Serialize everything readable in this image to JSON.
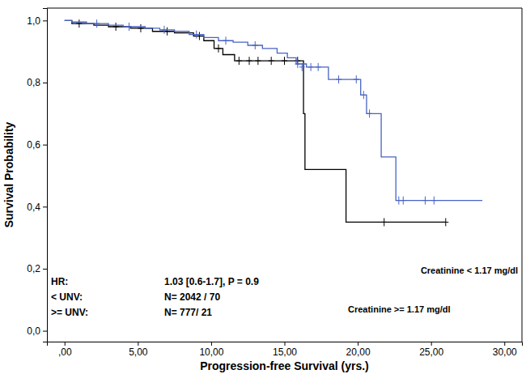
{
  "chart_data": {
    "type": "step",
    "x_label": "Progression-free Survival (yrs.)",
    "y_label": "Survival Probability",
    "xlim": [
      -1.2,
      31.2
    ],
    "ylim": [
      -0.035,
      1.04
    ],
    "xticks": [
      {
        "value": 0,
        "label": ",00"
      },
      {
        "value": 5,
        "label": "5,00"
      },
      {
        "value": 10,
        "label": "10,00"
      },
      {
        "value": 15,
        "label": "15,00"
      },
      {
        "value": 20,
        "label": "20,00"
      },
      {
        "value": 25,
        "label": "25,00"
      },
      {
        "value": 30,
        "label": "30,00"
      }
    ],
    "yticks": [
      {
        "value": 0,
        "label": "0,0"
      },
      {
        "value": 0.2,
        "label": "0,2"
      },
      {
        "value": 0.4,
        "label": "0,4"
      },
      {
        "value": 0.6,
        "label": "0,6"
      },
      {
        "value": 0.8,
        "label": "0,8"
      },
      {
        "value": 1,
        "label": "1,0"
      }
    ],
    "grid": false,
    "annotations": [
      "HR:",
      "1.03 [0.6-1.7], P = 0.9",
      "< UNV:",
      "N= 2042 / 70",
      ">= UNV:",
      "N= 777/ 21"
    ],
    "series": [
      {
        "name": "Creatinine < 1.17 mg/dl",
        "color": "#4863c4",
        "marker": "plus",
        "x": [
          0,
          0.5,
          1.5,
          3,
          4,
          5.5,
          6.5,
          7.5,
          8.5,
          9.5,
          10.5,
          11.5,
          12.5,
          13.5,
          14.5,
          15.2,
          15.8,
          16.5,
          18.0,
          20.2,
          20.6,
          21.6,
          22.6,
          28.5
        ],
        "values": [
          1,
          0.995,
          0.99,
          0.985,
          0.98,
          0.975,
          0.97,
          0.965,
          0.955,
          0.945,
          0.935,
          0.93,
          0.92,
          0.91,
          0.895,
          0.88,
          0.86,
          0.85,
          0.81,
          0.76,
          0.7,
          0.56,
          0.42,
          0.42
        ],
        "censored_x": [
          2.2,
          4.4,
          6.8,
          9.0,
          11.0,
          13.0,
          15.9,
          16.2,
          16.8,
          17.3,
          18.7,
          19.9,
          20.4,
          20.8,
          22.8,
          23.1,
          24.6,
          25.2
        ],
        "censored_values": [
          0.99,
          0.98,
          0.97,
          0.955,
          0.935,
          0.92,
          0.86,
          0.85,
          0.85,
          0.85,
          0.81,
          0.81,
          0.76,
          0.7,
          0.42,
          0.42,
          0.42,
          0.42
        ]
      },
      {
        "name": "Creatinine >= 1.17 mg/dl",
        "color": "#000000",
        "marker": "plus",
        "x": [
          0,
          0.5,
          2,
          3,
          4.5,
          6,
          7.5,
          8.8,
          9.5,
          10.2,
          10.8,
          11.6,
          16.3,
          16.4,
          19.2,
          26
        ],
        "values": [
          1,
          0.99,
          0.985,
          0.98,
          0.975,
          0.965,
          0.96,
          0.95,
          0.935,
          0.91,
          0.89,
          0.87,
          0.7,
          0.52,
          0.35,
          0.35
        ],
        "censored_x": [
          1.0,
          3.5,
          5.2,
          7.0,
          9.2,
          10.5,
          11.9,
          12.6,
          13.2,
          14.1,
          15.0,
          15.9,
          21.8,
          26
        ],
        "censored_values": [
          0.99,
          0.98,
          0.975,
          0.965,
          0.95,
          0.91,
          0.87,
          0.87,
          0.87,
          0.87,
          0.87,
          0.87,
          0.35,
          0.35
        ]
      }
    ]
  }
}
